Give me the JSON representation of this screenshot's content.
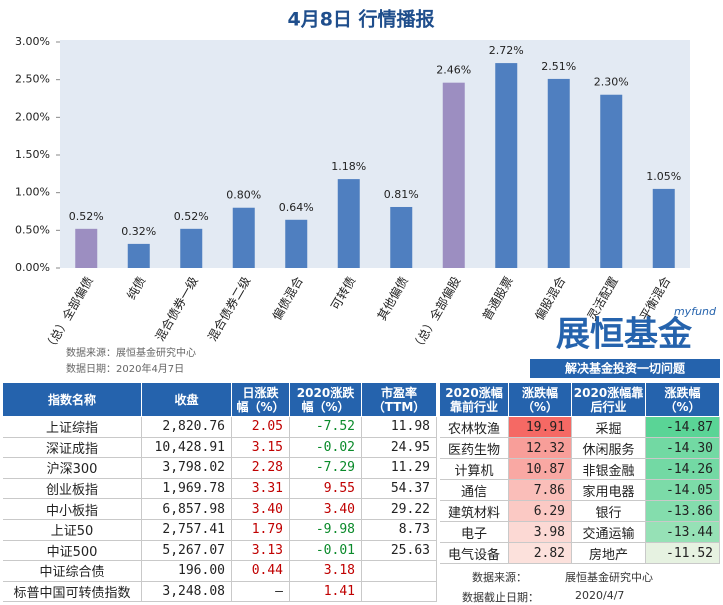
{
  "title": "4月8日  行情播报",
  "chart_data": {
    "type": "bar",
    "categories": [
      "（总）全部偏债",
      "纯债",
      "混合债券一级",
      "混合债券二级",
      "偏债混合",
      "可转债",
      "其他偏债",
      "（总）全部偏股",
      "普通股票",
      "偏股混合",
      "灵活配置",
      "平衡混合"
    ],
    "values": [
      0.52,
      0.32,
      0.52,
      0.8,
      0.64,
      1.18,
      0.81,
      2.46,
      2.72,
      2.51,
      2.3,
      1.05
    ],
    "value_labels": [
      "0.52%",
      "0.32%",
      "0.52%",
      "0.80%",
      "0.64%",
      "1.18%",
      "0.81%",
      "2.46%",
      "2.72%",
      "2.51%",
      "2.30%",
      "1.05%"
    ],
    "colors": [
      "#9c8ec1",
      "#4f7fc0",
      "#4f7fc0",
      "#4f7fc0",
      "#4f7fc0",
      "#4f7fc0",
      "#4f7fc0",
      "#9c8ec1",
      "#4f7fc0",
      "#4f7fc0",
      "#4f7fc0",
      "#4f7fc0"
    ],
    "ylim": [
      0,
      3
    ],
    "yticks": [
      {
        "value": 0,
        "label": "0.00%"
      },
      {
        "value": 0.5,
        "label": "0.50%"
      },
      {
        "value": 1,
        "label": "1.00%"
      },
      {
        "value": 1.5,
        "label": "1.50%"
      },
      {
        "value": 2,
        "label": "2.00%"
      },
      {
        "value": 2.5,
        "label": "2.50%"
      },
      {
        "value": 3,
        "label": "3.00%"
      }
    ]
  },
  "source_note": [
    "数据来源：展恒基金研究中心",
    "数据日期：2020年4月7日"
  ],
  "logo": {
    "brand": "myfund",
    "name": "展恒基金",
    "slogan": "解决基金投资一切问题"
  },
  "index_table": {
    "header": [
      [
        "指数名称"
      ],
      [
        "收盘"
      ],
      [
        "日涨跌",
        "幅（%）"
      ],
      [
        "2020涨跌",
        "幅（%）"
      ],
      [
        "市盈率",
        "（TTM）"
      ]
    ],
    "rows": [
      [
        "上证综指",
        "2,820.76",
        "2.05",
        "-7.52",
        "11.98"
      ],
      [
        "深证成指",
        "10,428.91",
        "3.15",
        "-0.02",
        "24.95"
      ],
      [
        "沪深300",
        "3,798.02",
        "2.28",
        "-7.29",
        "11.29"
      ],
      [
        "创业板指",
        "1,969.78",
        "3.31",
        "9.55",
        "54.37"
      ],
      [
        "中小板指",
        "6,857.98",
        "3.40",
        "3.40",
        "29.22"
      ],
      [
        "上证50",
        "2,757.41",
        "1.79",
        "-9.98",
        "8.73"
      ],
      [
        "中证500",
        "5,267.07",
        "3.13",
        "-0.01",
        "25.63"
      ],
      [
        "中证综合债",
        "196.00",
        "0.44",
        "3.18"
      ],
      [
        "标普中国可转债指数",
        "3,248.08",
        "–",
        "1.41"
      ]
    ]
  },
  "industry_table": {
    "header": [
      [
        "2020涨幅",
        "靠前行业"
      ],
      [
        "涨跌幅",
        "（%）"
      ],
      [
        "2020涨幅靠",
        "后行业"
      ],
      [
        "涨跌幅",
        "（%）"
      ]
    ],
    "rows": [
      [
        "农林牧渔",
        "19.91",
        "采掘",
        "-14.87"
      ],
      [
        "医药生物",
        "12.32",
        "休闲服务",
        "-14.30"
      ],
      [
        "计算机",
        "10.87",
        "非银金融",
        "-14.26"
      ],
      [
        "通信",
        "7.86",
        "家用电器",
        "-14.05"
      ],
      [
        "建筑材料",
        "6.29",
        "银行",
        "-13.86"
      ],
      [
        "电子",
        "3.98",
        "交通运输",
        "-13.44"
      ],
      [
        "电气设备",
        "2.82",
        "房地产",
        "-11.52"
      ]
    ]
  },
  "footer": {
    "source_label": "数据来源：",
    "source": "展恒基金研究中心",
    "date_label": "数据截止日期：",
    "date": "2020/4/7"
  }
}
